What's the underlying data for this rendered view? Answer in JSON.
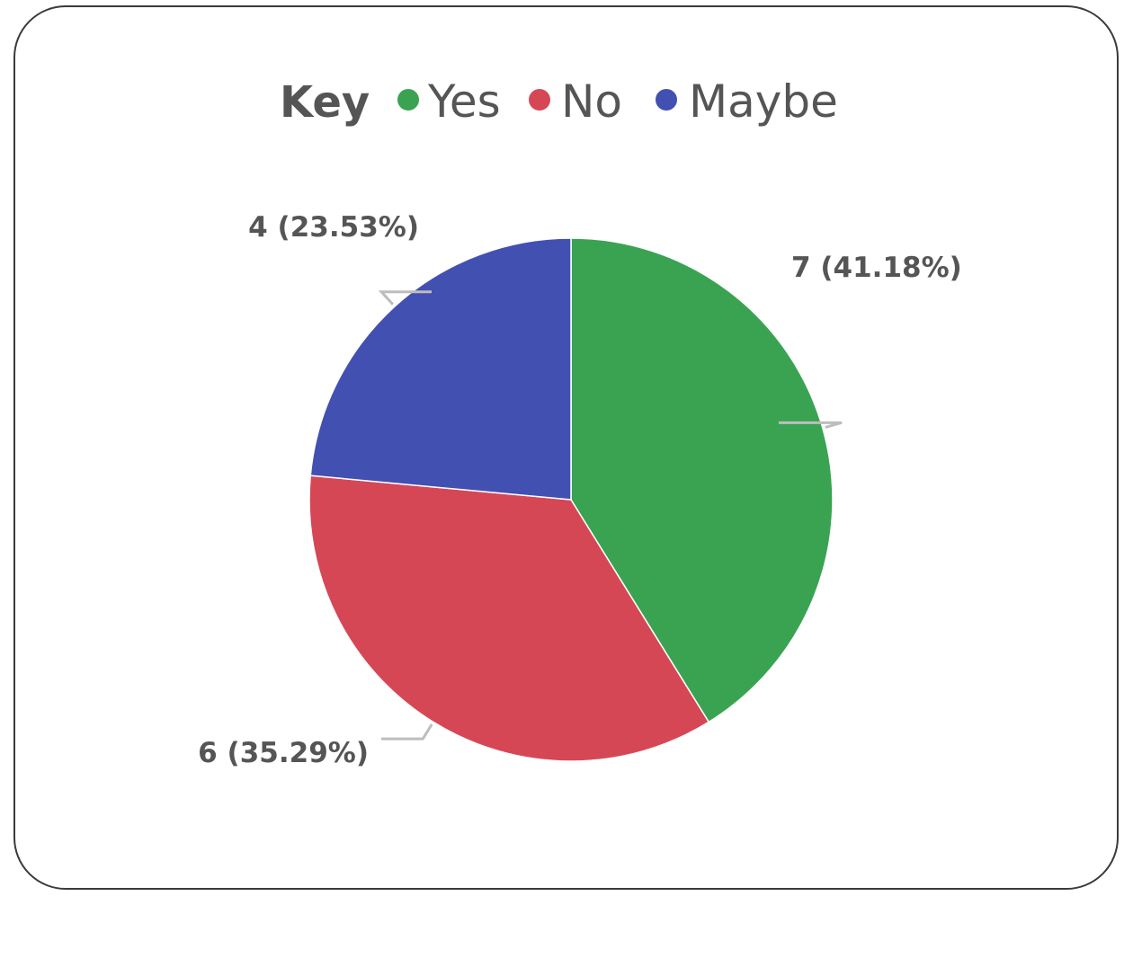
{
  "chart_data": {
    "type": "pie",
    "legend": {
      "title": "Key",
      "placement": "top"
    },
    "slices": [
      {
        "label": "Yes",
        "value": 7,
        "percent": "41.18%",
        "data_label": "7 (41.18%)",
        "color": "#3aa352"
      },
      {
        "label": "No",
        "value": 6,
        "percent": "35.29%",
        "data_label": "6 (35.29%)",
        "color": "#d64755"
      },
      {
        "label": "Maybe",
        "value": 4,
        "percent": "23.53%",
        "data_label": "4 (23.53%)",
        "color": "#4250b2"
      }
    ],
    "start_angle_deg": 0,
    "direction": "clockwise"
  }
}
